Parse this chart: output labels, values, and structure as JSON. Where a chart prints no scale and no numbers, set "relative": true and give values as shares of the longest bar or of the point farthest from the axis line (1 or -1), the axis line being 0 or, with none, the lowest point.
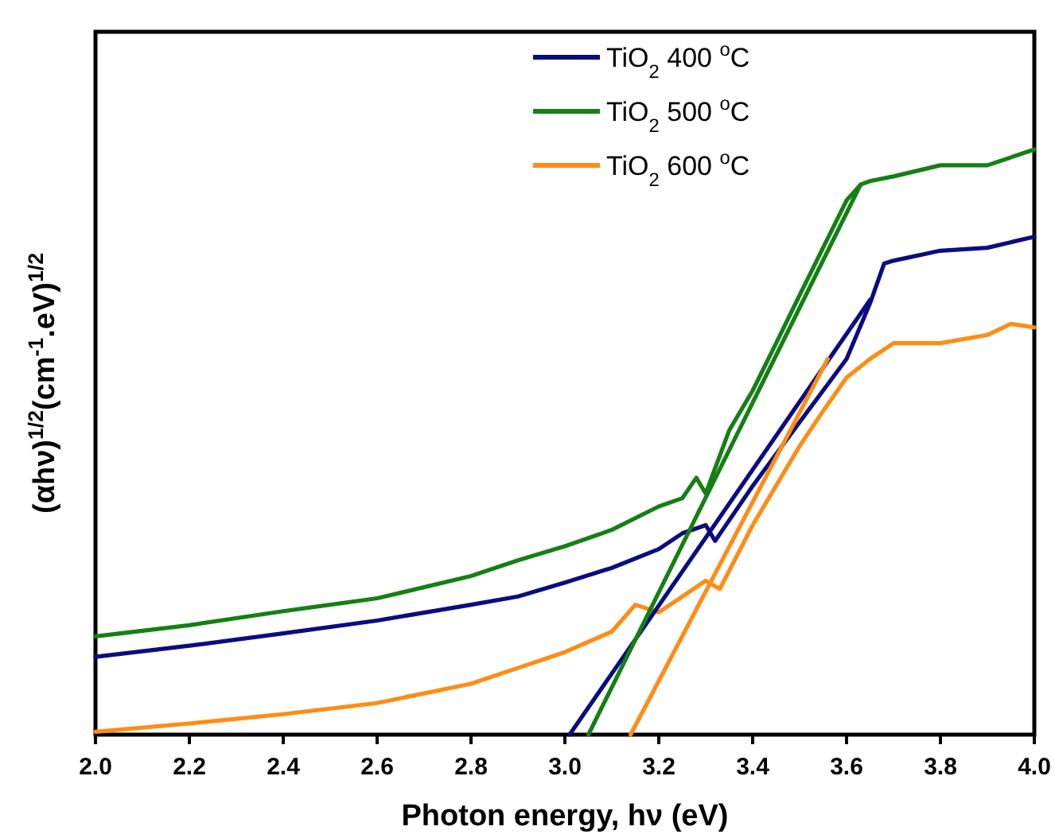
{
  "chart_data": {
    "type": "line",
    "relative": true,
    "xlabel": "Photon energy, hν (eV)",
    "ylabel": "(αhν)$^{1/2}$(cm$^{-1}$.eV)$^{1/2}$",
    "xlim": [
      2,
      4
    ],
    "xticks": [
      {
        "value": 2,
        "label": "2.0"
      },
      {
        "value": 2.2,
        "label": "2.2"
      },
      {
        "value": 2.4,
        "label": "2.4"
      },
      {
        "value": 2.6,
        "label": "2.6"
      },
      {
        "value": 2.8,
        "label": "2.8"
      },
      {
        "value": 3,
        "label": "3.0"
      },
      {
        "value": 3.2,
        "label": "3.2"
      },
      {
        "value": 3.4,
        "label": "3.4"
      },
      {
        "value": 3.6,
        "label": "3.6"
      },
      {
        "value": 3.8,
        "label": "3.8"
      },
      {
        "value": 4,
        "label": "4.0"
      }
    ],
    "tick_labels": "x",
    "grid": false,
    "legend": "top",
    "line_style": "solid",
    "marker": "none",
    "series": [
      {
        "name": "TiO$_{2}$ 400 $^{o}$C",
        "color": "#0c0c80",
        "x": [
          2,
          2.2,
          2.4,
          2.6,
          2.8,
          2.9,
          3,
          3.1,
          3.2,
          3.25,
          3.3,
          3.32,
          3.4,
          3.5,
          3.55,
          3.6,
          3.65,
          3.68,
          3.7,
          3.8,
          3.9,
          4
        ],
        "values": [
          0.133,
          0.152,
          0.173,
          0.195,
          0.222,
          0.236,
          0.26,
          0.285,
          0.317,
          0.344,
          0.358,
          0.331,
          0.425,
          0.534,
          0.588,
          0.642,
          0.737,
          0.805,
          0.81,
          0.827,
          0.832,
          0.851
        ]
      },
      {
        "name": "TiO$_{2}$ 500 $^{o}$C",
        "color": "#148014",
        "x": [
          2,
          2.2,
          2.4,
          2.6,
          2.8,
          2.9,
          3,
          3.1,
          3.2,
          3.25,
          3.28,
          3.3,
          3.35,
          3.4,
          3.45,
          3.5,
          3.55,
          3.6,
          3.63,
          3.65,
          3.7,
          3.8,
          3.9,
          4
        ],
        "values": [
          0.168,
          0.187,
          0.211,
          0.233,
          0.271,
          0.298,
          0.322,
          0.35,
          0.39,
          0.404,
          0.439,
          0.412,
          0.52,
          0.588,
          0.669,
          0.751,
          0.832,
          0.913,
          0.94,
          0.946,
          0.954,
          0.973,
          0.973,
          1
        ]
      },
      {
        "name": "TiO$_{2}$ 600 $^{o}$C",
        "color": "#ff8c14",
        "x": [
          2,
          2.2,
          2.4,
          2.6,
          2.8,
          2.9,
          3,
          3.1,
          3.15,
          3.2,
          3.25,
          3.3,
          3.33,
          3.4,
          3.5,
          3.55,
          3.6,
          3.65,
          3.7,
          3.8,
          3.9,
          3.95,
          4
        ],
        "values": [
          0.005,
          0.019,
          0.035,
          0.054,
          0.087,
          0.114,
          0.141,
          0.176,
          0.222,
          0.209,
          0.236,
          0.263,
          0.249,
          0.358,
          0.493,
          0.553,
          0.61,
          0.642,
          0.669,
          0.669,
          0.683,
          0.702,
          0.696
        ]
      },
      {
        "type": "line",
        "color": "#0c0c80",
        "x": [
          3.01,
          3.65
        ],
        "values": [
          0,
          0.743
        ]
      },
      {
        "type": "line",
        "color": "#148014",
        "x": [
          3.05,
          3.63
        ],
        "values": [
          0,
          0.94
        ]
      },
      {
        "type": "line",
        "color": "#ff8c14",
        "x": [
          3.14,
          3.56
        ],
        "values": [
          0,
          0.642
        ]
      }
    ]
  }
}
